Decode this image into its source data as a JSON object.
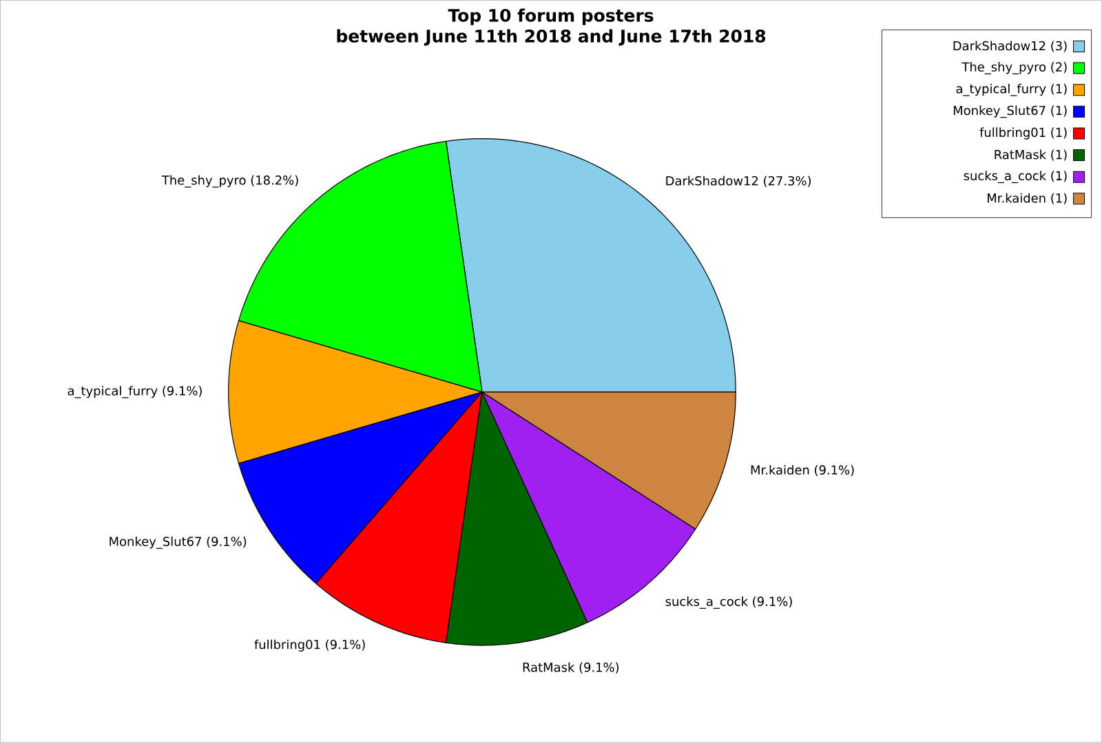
{
  "chart_data": {
    "type": "pie",
    "title": "Top 10 forum posters",
    "subtitle": "between June 11th 2018 and June 17th 2018",
    "categories": [
      "DarkShadow12 (3)",
      "The_shy_pyro (2)",
      "a_typical_furry (1)",
      "Monkey_Slut67 (1)",
      "fullbring01 (1)",
      "RatMask (1)",
      "sucks_a_cock (1)",
      "Mr.kaiden (1)"
    ],
    "values": [
      27.3,
      18.2,
      9.1,
      9.1,
      9.1,
      9.1,
      9.1,
      9.1
    ],
    "value_labels": [
      "DarkShadow12 (27.3%)",
      "The_shy_pyro (18.2%)",
      "a_typical_furry (9.1%)",
      "Monkey_Slut67 (9.1%)",
      "fullbring01 (9.1%)",
      "RatMask (9.1%)",
      "sucks_a_cock (9.1%)",
      "Mr.kaiden (9.1%)"
    ],
    "colors": [
      "#87ceeb",
      "#00ff00",
      "#ffa500",
      "#0000ff",
      "#ff0000",
      "#006400",
      "#a020f0",
      "#cd853f"
    ],
    "legend": "top right"
  }
}
